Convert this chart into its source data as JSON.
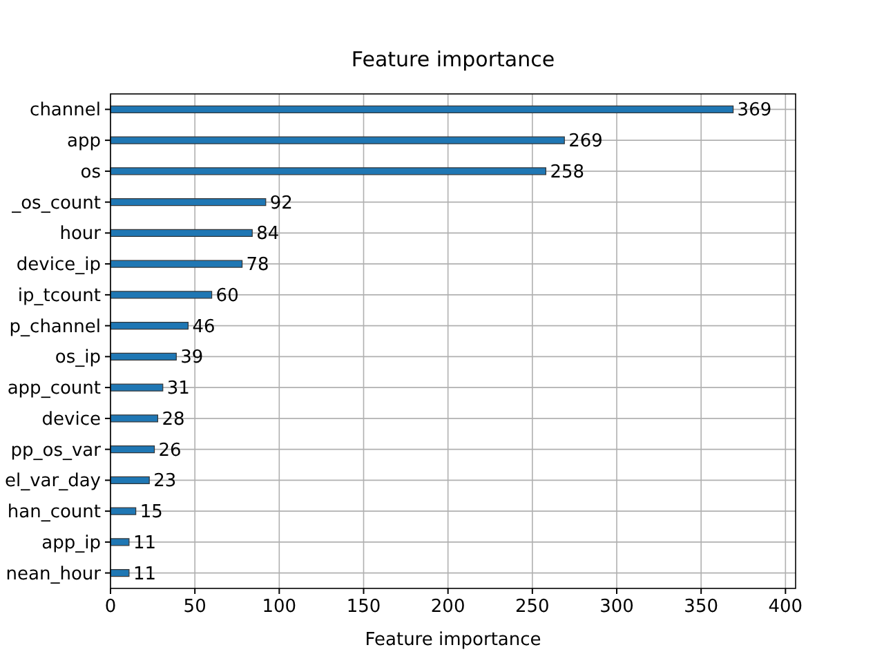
{
  "chart_data": {
    "type": "bar",
    "orientation": "horizontal",
    "title": "Feature importance",
    "xlabel": "Feature importance",
    "categories": [
      "channel",
      "app",
      "os",
      "_os_count",
      "hour",
      "device_ip",
      "ip_tcount",
      "p_channel",
      "os_ip",
      "app_count",
      "device",
      "pp_os_var",
      "el_var_day",
      "han_count",
      "app_ip",
      "nean_hour"
    ],
    "values": [
      369,
      269,
      258,
      92,
      84,
      78,
      60,
      46,
      39,
      31,
      28,
      26,
      23,
      15,
      11,
      11
    ],
    "color": "#1f77b4",
    "xlim": [
      0,
      406
    ],
    "xticks": [
      0,
      50,
      100,
      150,
      200,
      250,
      300,
      350,
      400
    ],
    "grid": true,
    "data_labels": true
  }
}
